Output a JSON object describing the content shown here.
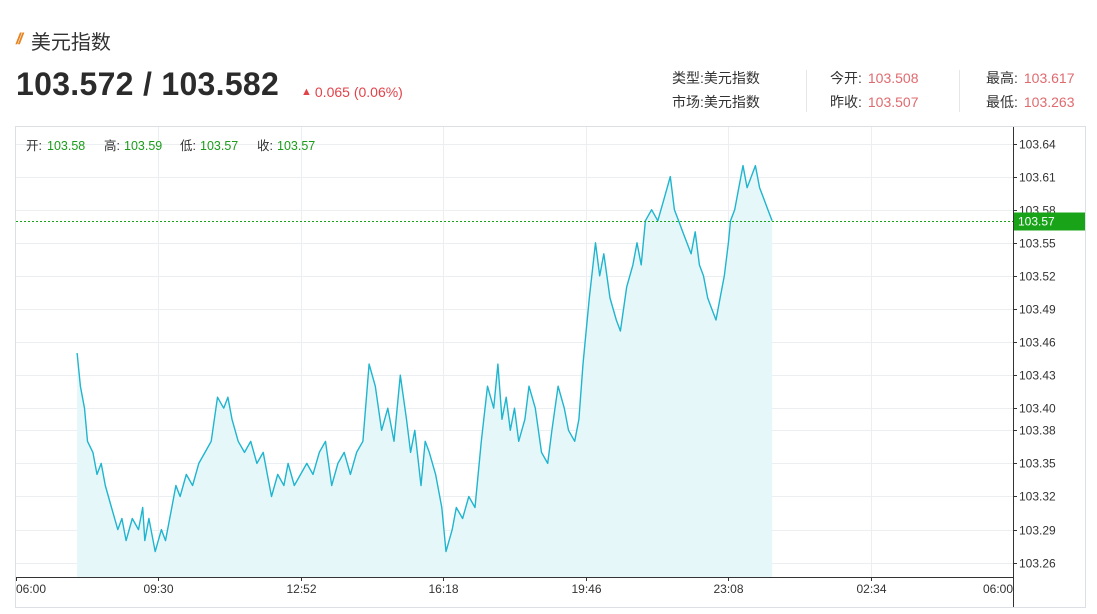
{
  "header": {
    "title": "美元指数",
    "bid_ask": "103.572 / 103.582",
    "change": "0.065 (0.06%)"
  },
  "info": {
    "type_label": "类型:",
    "type_value": "美元指数",
    "market_label": "市场:",
    "market_value": "美元指数",
    "open_label": "今开:",
    "open_value": "103.508",
    "prev_close_label": "昨收:",
    "prev_close_value": "103.507",
    "high_label": "最高:",
    "high_value": "103.617",
    "low_label": "最低:",
    "low_value": "103.263"
  },
  "ohlc": {
    "open_label": "开:",
    "open_value": "103.58",
    "high_label": "高:",
    "high_value": "103.59",
    "low_label": "低:",
    "low_value": "103.57",
    "close_label": "收:",
    "close_value": "103.57"
  },
  "colors": {
    "line": "#1fb5cf",
    "area": "#e6f7fa",
    "up": "#e2434a",
    "current_price": "#19a319",
    "grid": "#eceff1"
  },
  "chart_data": {
    "type": "area",
    "x_ticks": [
      "06:00",
      "09:30",
      "12:52",
      "16:18",
      "19:46",
      "23:08",
      "02:34",
      "06:00"
    ],
    "y_ticks": [
      103.64,
      103.61,
      103.58,
      103.55,
      103.52,
      103.49,
      103.46,
      103.43,
      103.4,
      103.38,
      103.35,
      103.32,
      103.29,
      103.26
    ],
    "ylim": [
      103.247,
      103.655
    ],
    "current_price": 103.57,
    "x_range_hours": [
      0,
      24
    ],
    "series": [
      {
        "x": [
          1.47,
          1.55,
          1.65,
          1.72,
          1.85,
          1.95,
          2.05,
          2.15,
          2.3,
          2.45,
          2.55,
          2.65,
          2.8,
          2.95,
          3.05,
          3.1,
          3.2,
          3.35,
          3.5,
          3.6,
          3.75,
          3.85,
          3.95,
          4.1,
          4.25,
          4.4,
          4.55,
          4.7,
          4.85,
          5.0,
          5.1,
          5.2,
          5.35,
          5.5,
          5.65,
          5.8,
          5.95,
          6.05,
          6.15,
          6.3,
          6.45,
          6.55,
          6.7,
          6.85,
          7.0,
          7.15,
          7.3,
          7.45,
          7.6,
          7.75,
          7.9,
          8.05,
          8.2,
          8.35,
          8.5,
          8.65,
          8.8,
          8.95,
          9.1,
          9.25,
          9.4,
          9.5,
          9.6,
          9.75,
          9.85,
          9.95,
          10.1,
          10.25,
          10.35,
          10.5,
          10.6,
          10.75,
          10.9,
          11.05,
          11.2,
          11.35,
          11.5,
          11.6,
          11.7,
          11.8,
          11.9,
          12.0,
          12.1,
          12.25,
          12.35,
          12.5,
          12.65,
          12.8,
          12.9,
          13.05,
          13.2,
          13.3,
          13.45,
          13.55,
          13.65,
          13.8,
          13.95,
          14.05,
          14.15,
          14.3,
          14.45,
          14.55,
          14.7,
          14.85,
          14.95,
          15.05,
          15.15,
          15.3,
          15.45,
          15.6,
          15.75,
          15.85,
          15.95,
          16.05,
          16.15,
          16.25,
          16.35,
          16.45,
          16.55,
          16.65,
          16.75,
          16.85,
          16.95,
          17.05,
          17.15,
          17.2,
          17.3,
          17.4,
          17.5,
          17.6,
          17.7,
          17.8,
          17.9,
          18.0,
          18.1,
          18.2
        ],
        "y": [
          103.45,
          103.42,
          103.4,
          103.37,
          103.36,
          103.34,
          103.35,
          103.33,
          103.31,
          103.29,
          103.3,
          103.28,
          103.3,
          103.29,
          103.31,
          103.28,
          103.3,
          103.27,
          103.29,
          103.28,
          103.31,
          103.33,
          103.32,
          103.34,
          103.33,
          103.35,
          103.36,
          103.37,
          103.41,
          103.4,
          103.41,
          103.39,
          103.37,
          103.36,
          103.37,
          103.35,
          103.36,
          103.34,
          103.32,
          103.34,
          103.33,
          103.35,
          103.33,
          103.34,
          103.35,
          103.34,
          103.36,
          103.37,
          103.33,
          103.35,
          103.36,
          103.34,
          103.36,
          103.37,
          103.44,
          103.42,
          103.38,
          103.4,
          103.37,
          103.43,
          103.39,
          103.36,
          103.38,
          103.33,
          103.37,
          103.36,
          103.34,
          103.31,
          103.27,
          103.29,
          103.31,
          103.3,
          103.32,
          103.31,
          103.37,
          103.42,
          103.4,
          103.44,
          103.39,
          103.41,
          103.38,
          103.4,
          103.37,
          103.39,
          103.42,
          103.4,
          103.36,
          103.35,
          103.38,
          103.42,
          103.4,
          103.38,
          103.37,
          103.39,
          103.44,
          103.5,
          103.55,
          103.52,
          103.54,
          103.5,
          103.48,
          103.47,
          103.51,
          103.53,
          103.55,
          103.53,
          103.57,
          103.58,
          103.57,
          103.59,
          103.61,
          103.58,
          103.57,
          103.56,
          103.55,
          103.54,
          103.56,
          103.53,
          103.52,
          103.5,
          103.49,
          103.48,
          103.5,
          103.52,
          103.55,
          103.57,
          103.58,
          103.6,
          103.62,
          103.6,
          103.61,
          103.62,
          103.6,
          103.59,
          103.58,
          103.57
        ]
      }
    ],
    "grid": true
  }
}
